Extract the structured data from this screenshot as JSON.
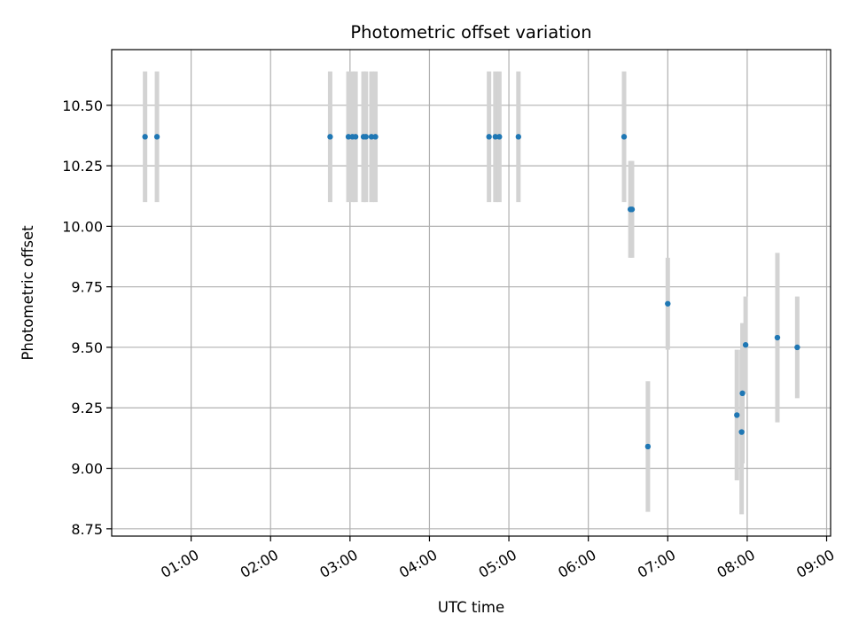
{
  "chart_data": {
    "type": "scatter",
    "title": "Photometric offset variation",
    "xlabel": "UTC time",
    "ylabel": "Photometric offset",
    "x_unit": "UTC time (hours)",
    "xlim": [
      0.0,
      9.05
    ],
    "ylim": [
      8.72,
      10.73
    ],
    "x_ticks": [
      {
        "value": 1,
        "label": "01:00"
      },
      {
        "value": 2,
        "label": "02:00"
      },
      {
        "value": 3,
        "label": "03:00"
      },
      {
        "value": 4,
        "label": "04:00"
      },
      {
        "value": 5,
        "label": "05:00"
      },
      {
        "value": 6,
        "label": "06:00"
      },
      {
        "value": 7,
        "label": "07:00"
      },
      {
        "value": 8,
        "label": "08:00"
      },
      {
        "value": 9,
        "label": "09:00"
      }
    ],
    "y_ticks": [
      {
        "value": 8.75,
        "label": "8.75"
      },
      {
        "value": 9.0,
        "label": "9.00"
      },
      {
        "value": 9.25,
        "label": "9.25"
      },
      {
        "value": 9.5,
        "label": "9.50"
      },
      {
        "value": 9.75,
        "label": "9.75"
      },
      {
        "value": 10.0,
        "label": "10.00"
      },
      {
        "value": 10.25,
        "label": "10.25"
      },
      {
        "value": 10.5,
        "label": "10.50"
      }
    ],
    "grid": true,
    "colors": {
      "point": "#1f77b4",
      "errorbar": "#d3d3d3"
    },
    "points": [
      {
        "x": 0.42,
        "y": 10.37,
        "err": 0.27
      },
      {
        "x": 0.57,
        "y": 10.37,
        "err": 0.27
      },
      {
        "x": 2.75,
        "y": 10.37,
        "err": 0.27
      },
      {
        "x": 2.98,
        "y": 10.37,
        "err": 0.27
      },
      {
        "x": 3.03,
        "y": 10.37,
        "err": 0.27
      },
      {
        "x": 3.07,
        "y": 10.37,
        "err": 0.27
      },
      {
        "x": 3.17,
        "y": 10.37,
        "err": 0.27
      },
      {
        "x": 3.2,
        "y": 10.37,
        "err": 0.27
      },
      {
        "x": 3.27,
        "y": 10.37,
        "err": 0.27
      },
      {
        "x": 3.32,
        "y": 10.37,
        "err": 0.27
      },
      {
        "x": 4.75,
        "y": 10.37,
        "err": 0.27
      },
      {
        "x": 4.83,
        "y": 10.37,
        "err": 0.27
      },
      {
        "x": 4.88,
        "y": 10.37,
        "err": 0.27
      },
      {
        "x": 5.12,
        "y": 10.37,
        "err": 0.27
      },
      {
        "x": 6.45,
        "y": 10.37,
        "err": 0.27
      },
      {
        "x": 6.53,
        "y": 10.07,
        "err": 0.2
      },
      {
        "x": 6.55,
        "y": 10.07,
        "err": 0.2
      },
      {
        "x": 6.75,
        "y": 9.09,
        "err": 0.27
      },
      {
        "x": 7.0,
        "y": 9.68,
        "err": 0.19
      },
      {
        "x": 7.87,
        "y": 9.22,
        "err": 0.27
      },
      {
        "x": 7.93,
        "y": 9.15,
        "err": 0.34
      },
      {
        "x": 7.94,
        "y": 9.31,
        "err": 0.29
      },
      {
        "x": 7.98,
        "y": 9.51,
        "err": 0.2
      },
      {
        "x": 8.38,
        "y": 9.54,
        "err": 0.35
      },
      {
        "x": 8.63,
        "y": 9.5,
        "err": 0.21
      }
    ]
  }
}
